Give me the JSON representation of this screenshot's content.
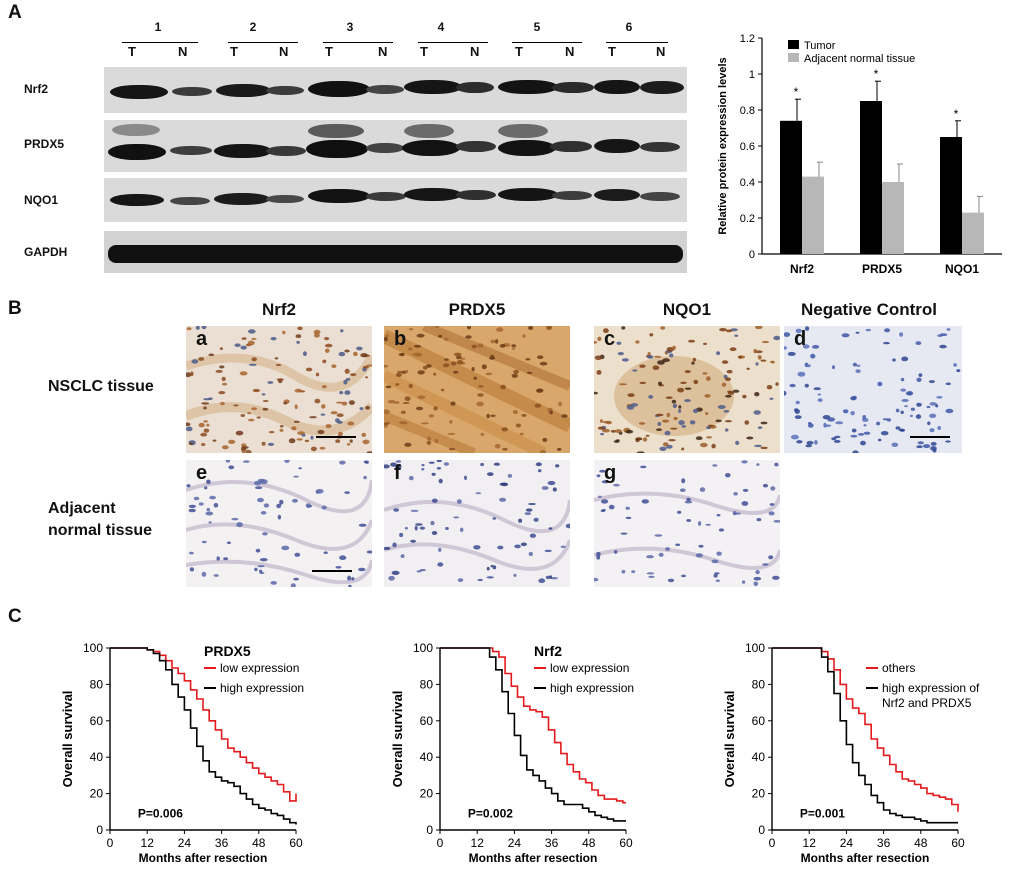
{
  "panels": {
    "a": "A",
    "b": "B",
    "c": "C"
  },
  "western_blot": {
    "lanes": [
      "1",
      "2",
      "3",
      "4",
      "5",
      "6"
    ],
    "tumor_label": "T",
    "normal_label": "N",
    "proteins": [
      "Nrf2",
      "PRDX5",
      "NQO1",
      "GAPDH"
    ]
  },
  "ihc": {
    "columns": [
      "Nrf2",
      "PRDX5",
      "NQO1",
      "Negative Control"
    ],
    "rows": [
      "NSCLC tissue",
      "Adjacent\nnormal tissue"
    ],
    "tile_letters": [
      "a",
      "b",
      "c",
      "d",
      "e",
      "f",
      "g"
    ]
  },
  "chart_data": [
    {
      "type": "bar",
      "categories": [
        "Nrf2",
        "PRDX5",
        "NQO1"
      ],
      "series": [
        {
          "name": "Tumor",
          "values": [
            0.74,
            0.85,
            0.65
          ],
          "errors": [
            0.12,
            0.11,
            0.09
          ],
          "color": "#000000"
        },
        {
          "name": "Adjacent  normal tissue",
          "values": [
            0.43,
            0.4,
            0.23
          ],
          "errors": [
            0.08,
            0.1,
            0.09
          ],
          "color": "#b7b7b7"
        }
      ],
      "significance": [
        "*",
        "*",
        "*"
      ],
      "ylabel": "Relative protein expression levels",
      "ylim": [
        0,
        1.2
      ],
      "yticks": [
        "0",
        "0.2",
        "0.4",
        "0.6",
        "0.8",
        "1",
        "1.2"
      ],
      "legend_position": "top-left"
    },
    {
      "type": "line",
      "title": "PRDX5",
      "xlabel": "Months after resection",
      "ylabel": "Overall survival",
      "xticks": [
        "0",
        "12",
        "24",
        "36",
        "48",
        "60"
      ],
      "yticks": [
        "0",
        "20",
        "40",
        "60",
        "80",
        "100"
      ],
      "xlim": [
        0,
        60
      ],
      "ylim": [
        0,
        100
      ],
      "pvalue": "P=0.006",
      "series": [
        {
          "name": "low expression",
          "color": "#e41a1c",
          "points": [
            [
              0,
              100
            ],
            [
              10,
              100
            ],
            [
              12,
              99
            ],
            [
              14,
              98
            ],
            [
              16,
              96
            ],
            [
              18,
              93
            ],
            [
              20,
              89
            ],
            [
              22,
              86
            ],
            [
              24,
              82
            ],
            [
              26,
              77
            ],
            [
              28,
              72
            ],
            [
              30,
              66
            ],
            [
              32,
              60
            ],
            [
              34,
              55
            ],
            [
              36,
              50
            ],
            [
              38,
              45
            ],
            [
              40,
              43
            ],
            [
              42,
              40
            ],
            [
              44,
              37
            ],
            [
              46,
              34
            ],
            [
              48,
              31
            ],
            [
              50,
              29
            ],
            [
              52,
              27
            ],
            [
              54,
              25
            ],
            [
              56,
              21
            ],
            [
              58,
              16
            ],
            [
              60,
              20
            ]
          ]
        },
        {
          "name": "high expression",
          "color": "#000000",
          "points": [
            [
              0,
              100
            ],
            [
              10,
              100
            ],
            [
              12,
              99
            ],
            [
              14,
              97
            ],
            [
              16,
              93
            ],
            [
              18,
              88
            ],
            [
              20,
              80
            ],
            [
              22,
              73
            ],
            [
              24,
              66
            ],
            [
              26,
              56
            ],
            [
              28,
              46
            ],
            [
              30,
              38
            ],
            [
              32,
              32
            ],
            [
              34,
              29
            ],
            [
              36,
              27
            ],
            [
              38,
              26
            ],
            [
              40,
              24
            ],
            [
              42,
              20
            ],
            [
              44,
              17
            ],
            [
              46,
              14
            ],
            [
              48,
              12
            ],
            [
              50,
              11
            ],
            [
              52,
              9
            ],
            [
              54,
              8
            ],
            [
              56,
              6
            ],
            [
              58,
              4
            ],
            [
              60,
              3
            ]
          ]
        }
      ]
    },
    {
      "type": "line",
      "title": "Nrf2",
      "xlabel": "Months after resection",
      "ylabel": "Overall survival",
      "xticks": [
        "0",
        "12",
        "24",
        "36",
        "48",
        "60"
      ],
      "yticks": [
        "0",
        "20",
        "40",
        "60",
        "80",
        "100"
      ],
      "xlim": [
        0,
        60
      ],
      "ylim": [
        0,
        100
      ],
      "pvalue": "P=0.002",
      "series": [
        {
          "name": "low  expression",
          "color": "#e41a1c",
          "points": [
            [
              0,
              100
            ],
            [
              15,
              100
            ],
            [
              17,
              98
            ],
            [
              19,
              95
            ],
            [
              21,
              86
            ],
            [
              23,
              79
            ],
            [
              25,
              73
            ],
            [
              27,
              68
            ],
            [
              29,
              66
            ],
            [
              31,
              65
            ],
            [
              33,
              62
            ],
            [
              35,
              55
            ],
            [
              37,
              48
            ],
            [
              39,
              42
            ],
            [
              41,
              36
            ],
            [
              43,
              32
            ],
            [
              45,
              28
            ],
            [
              47,
              26
            ],
            [
              49,
              22
            ],
            [
              51,
              19
            ],
            [
              53,
              17
            ],
            [
              55,
              17
            ],
            [
              57,
              16
            ],
            [
              59,
              15
            ],
            [
              60,
              15
            ]
          ]
        },
        {
          "name": "high expression",
          "color": "#000000",
          "points": [
            [
              0,
              100
            ],
            [
              14,
              100
            ],
            [
              16,
              95
            ],
            [
              18,
              88
            ],
            [
              20,
              76
            ],
            [
              22,
              64
            ],
            [
              24,
              52
            ],
            [
              26,
              41
            ],
            [
              28,
              33
            ],
            [
              30,
              30
            ],
            [
              32,
              27
            ],
            [
              34,
              23
            ],
            [
              36,
              20
            ],
            [
              38,
              16
            ],
            [
              40,
              14
            ],
            [
              42,
              14
            ],
            [
              44,
              14
            ],
            [
              46,
              12
            ],
            [
              48,
              10
            ],
            [
              50,
              8
            ],
            [
              52,
              7
            ],
            [
              54,
              6
            ],
            [
              56,
              5
            ],
            [
              58,
              5
            ],
            [
              60,
              5
            ]
          ]
        }
      ]
    },
    {
      "type": "line",
      "xlabel": "Months after resection",
      "ylabel": "Overall survival",
      "xticks": [
        "0",
        "12",
        "24",
        "36",
        "48",
        "60"
      ],
      "yticks": [
        "0",
        "20",
        "40",
        "60",
        "80",
        "100"
      ],
      "xlim": [
        0,
        60
      ],
      "ylim": [
        0,
        100
      ],
      "pvalue": "P=0.001",
      "series": [
        {
          "name": "others",
          "color": "#e41a1c",
          "points": [
            [
              0,
              100
            ],
            [
              14,
              100
            ],
            [
              16,
              98
            ],
            [
              18,
              94
            ],
            [
              20,
              88
            ],
            [
              22,
              80
            ],
            [
              24,
              72
            ],
            [
              26,
              67
            ],
            [
              28,
              64
            ],
            [
              30,
              58
            ],
            [
              32,
              50
            ],
            [
              34,
              45
            ],
            [
              36,
              41
            ],
            [
              38,
              36
            ],
            [
              40,
              32
            ],
            [
              42,
              28
            ],
            [
              44,
              27
            ],
            [
              46,
              25
            ],
            [
              48,
              23
            ],
            [
              50,
              20
            ],
            [
              52,
              19
            ],
            [
              54,
              18
            ],
            [
              56,
              17
            ],
            [
              58,
              14
            ],
            [
              60,
              10
            ]
          ]
        },
        {
          "name": "high expression of\nNrf2 and PRDX5",
          "color": "#000000",
          "points": [
            [
              0,
              100
            ],
            [
              14,
              100
            ],
            [
              16,
              95
            ],
            [
              18,
              87
            ],
            [
              20,
              75
            ],
            [
              22,
              60
            ],
            [
              24,
              47
            ],
            [
              26,
              37
            ],
            [
              28,
              30
            ],
            [
              30,
              25
            ],
            [
              32,
              19
            ],
            [
              34,
              15
            ],
            [
              36,
              11
            ],
            [
              38,
              9
            ],
            [
              40,
              8
            ],
            [
              42,
              7
            ],
            [
              44,
              7
            ],
            [
              46,
              6
            ],
            [
              48,
              5
            ],
            [
              50,
              4
            ],
            [
              52,
              4
            ],
            [
              54,
              4
            ],
            [
              56,
              4
            ],
            [
              58,
              4
            ],
            [
              60,
              4
            ]
          ]
        }
      ]
    }
  ]
}
